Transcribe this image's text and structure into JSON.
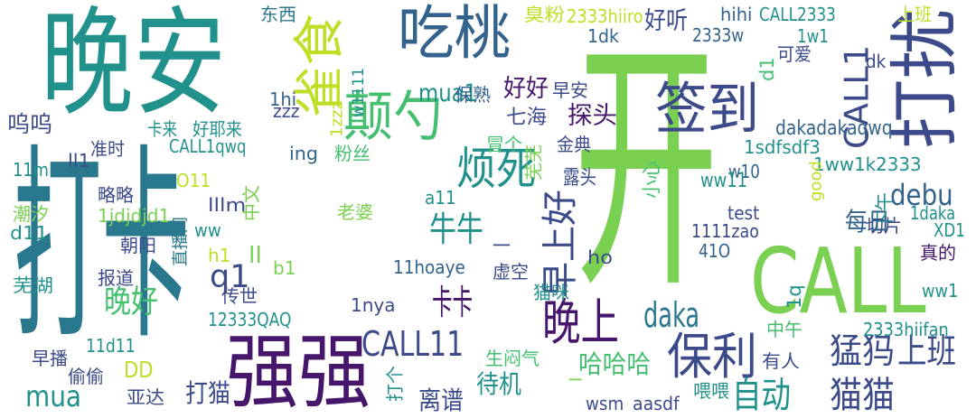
{
  "palette": {
    "purple": "#46166a",
    "indigo": "#3c4a8a",
    "blue": "#33638d",
    "teal": "#2a788e",
    "green": "#21918c",
    "sea": "#22a884",
    "grass": "#44bf70",
    "lime": "#7ad151",
    "yellow": "#bddf26"
  },
  "words": [
    {
      "text": "晚安"
    },
    {
      "text": "打卡"
    },
    {
      "text": "开"
    },
    {
      "text": "CALL"
    },
    {
      "text": "强强"
    },
    {
      "text": "吃桃"
    },
    {
      "text": "打扰"
    },
    {
      "text": "签到"
    },
    {
      "text": "雀食"
    },
    {
      "text": "颠勺"
    },
    {
      "text": "保利"
    },
    {
      "text": "晚上"
    },
    {
      "text": "CALL11"
    },
    {
      "text": "CALL1"
    },
    {
      "text": "烦死"
    },
    {
      "text": "早上好"
    },
    {
      "text": "daka"
    },
    {
      "text": "猫猫"
    },
    {
      "text": "自动"
    },
    {
      "text": "猛犸"
    },
    {
      "text": "上班"
    },
    {
      "text": "mua"
    },
    {
      "text": "卡卡"
    },
    {
      "text": "牛牛"
    },
    {
      "text": "晚好"
    },
    {
      "text": "q1"
    },
    {
      "text": "debu"
    },
    {
      "text": "mua1"
    },
    {
      "text": "好好"
    },
    {
      "text": "探头"
    },
    {
      "text": "每日"
    },
    {
      "text": "哈哈哈"
    },
    {
      "text": "好听"
    },
    {
      "text": "d1"
    },
    {
      "text": "离谱"
    },
    {
      "text": "待机"
    },
    {
      "text": "打猫"
    },
    {
      "text": "呜呜"
    },
    {
      "text": "DD"
    },
    {
      "text": "dakadakaqwq"
    },
    {
      "text": "2333hiiro"
    },
    {
      "text": "CALL2333"
    },
    {
      "text": "hihi"
    },
    {
      "text": "臭粉"
    },
    {
      "text": "东西"
    },
    {
      "text": "1dk"
    },
    {
      "text": "2333w"
    },
    {
      "text": "1w1"
    },
    {
      "text": "可爱"
    },
    {
      "text": "上班"
    },
    {
      "text": "dk"
    },
    {
      "text": "1hi"
    },
    {
      "text": "w1111"
    },
    {
      "text": "保熟"
    },
    {
      "text": "早安"
    },
    {
      "text": "zzz"
    },
    {
      "text": "1zzz"
    },
    {
      "text": "七海"
    },
    {
      "text": "卡来"
    },
    {
      "text": "好耶来"
    },
    {
      "text": "准时"
    },
    {
      "text": "CALL1qwq"
    },
    {
      "text": "冒个"
    },
    {
      "text": "金典"
    },
    {
      "text": "1sdfsdf3"
    },
    {
      "text": "ing"
    },
    {
      "text": "粉丝"
    },
    {
      "text": "w10"
    },
    {
      "text": "1ww1k2333"
    },
    {
      "text": "11m"
    },
    {
      "text": "ll1"
    },
    {
      "text": "芜芜"
    },
    {
      "text": "小心"
    },
    {
      "text": "good"
    },
    {
      "text": "O11"
    },
    {
      "text": "ww11"
    },
    {
      "text": "露头"
    },
    {
      "text": "略略"
    },
    {
      "text": "下午"
    },
    {
      "text": "1daka"
    },
    {
      "text": "潮汐"
    },
    {
      "text": "中文"
    },
    {
      "text": "lllm"
    },
    {
      "text": "a11"
    },
    {
      "text": "1jdjdjd1"
    },
    {
      "text": "test"
    },
    {
      "text": "XD1"
    },
    {
      "text": "d11"
    },
    {
      "text": "直播间"
    },
    {
      "text": "老婆"
    },
    {
      "text": "ww"
    },
    {
      "text": "切片"
    },
    {
      "text": "1111zao"
    },
    {
      "text": "朝阳"
    },
    {
      "text": "h1"
    },
    {
      "text": "ll"
    },
    {
      "text": "真的"
    },
    {
      "text": "41O"
    },
    {
      "text": "ho"
    },
    {
      "text": "一"
    },
    {
      "text": "b1"
    },
    {
      "text": "11hoaye"
    },
    {
      "text": "报道"
    },
    {
      "text": "传世"
    },
    {
      "text": "虚空"
    },
    {
      "text": "1q"
    },
    {
      "text": "芜湖"
    },
    {
      "text": "ww1"
    },
    {
      "text": "猫咪"
    },
    {
      "text": "1nya"
    },
    {
      "text": "12333QAQ"
    },
    {
      "text": "2333hiifan"
    },
    {
      "text": "中午"
    },
    {
      "text": "早播"
    },
    {
      "text": "11d11"
    },
    {
      "text": "生闷气"
    },
    {
      "text": "有人"
    },
    {
      "text": "偷偷"
    },
    {
      "text": "亚达"
    },
    {
      "text": "打个"
    },
    {
      "text": "一"
    },
    {
      "text": "喂喂"
    },
    {
      "text": "wsm"
    },
    {
      "text": "aasdf"
    }
  ]
}
